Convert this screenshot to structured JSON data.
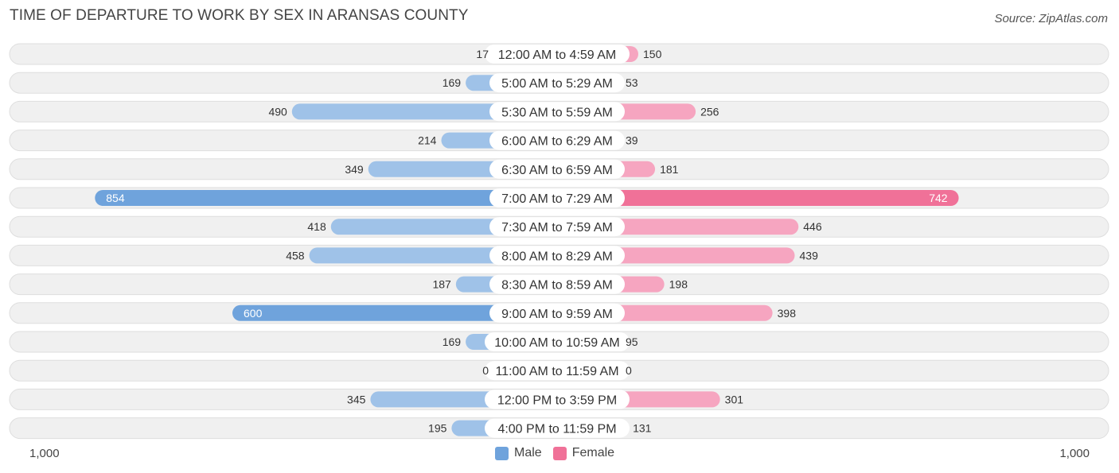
{
  "title": "TIME OF DEPARTURE TO WORK BY SEX IN ARANSAS COUNTY",
  "source": "Source: ZipAtlas.com",
  "colors": {
    "male": "#6fa3dc",
    "male_light": "#9fc2e8",
    "female": "#f07198",
    "female_light": "#f6a5c0",
    "row_bg": "#f0f0f0",
    "row_border": "#dedede"
  },
  "legend": {
    "male_label": "Male",
    "female_label": "Female"
  },
  "axis": {
    "left_label": "1,000",
    "right_label": "1,000"
  },
  "chart_data": {
    "type": "bar",
    "orientation": "horizontal-diverging",
    "title": "TIME OF DEPARTURE TO WORK BY SEX IN ARANSAS COUNTY",
    "xlim": [
      -1000,
      1000
    ],
    "categories": [
      "12:00 AM to 4:59 AM",
      "5:00 AM to 5:29 AM",
      "5:30 AM to 5:59 AM",
      "6:00 AM to 6:29 AM",
      "6:30 AM to 6:59 AM",
      "7:00 AM to 7:29 AM",
      "7:30 AM to 7:59 AM",
      "8:00 AM to 8:29 AM",
      "8:30 AM to 8:59 AM",
      "9:00 AM to 9:59 AM",
      "10:00 AM to 10:59 AM",
      "11:00 AM to 11:59 AM",
      "12:00 PM to 3:59 PM",
      "4:00 PM to 11:59 PM"
    ],
    "series": [
      {
        "name": "Male",
        "values": [
          17,
          169,
          490,
          214,
          349,
          854,
          418,
          458,
          187,
          600,
          169,
          0,
          345,
          195
        ]
      },
      {
        "name": "Female",
        "values": [
          150,
          53,
          256,
          39,
          181,
          742,
          446,
          439,
          198,
          398,
          95,
          0,
          301,
          131
        ]
      }
    ]
  }
}
